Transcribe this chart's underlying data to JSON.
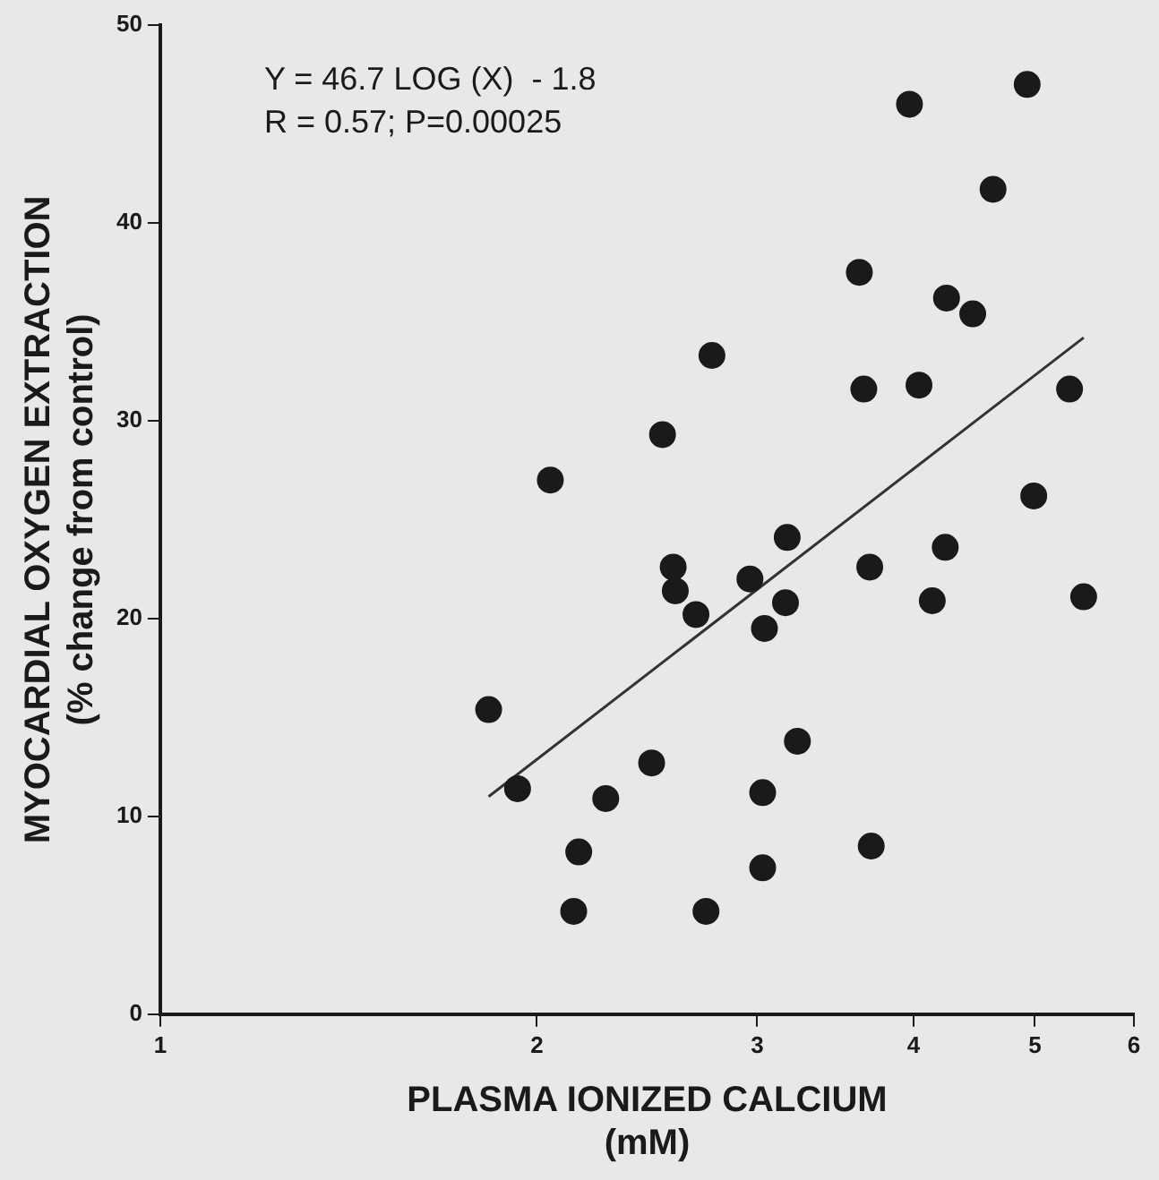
{
  "chart_data": {
    "type": "scatter",
    "xlabel": "PLASMA IONIZED CALCIUM\n(mM)",
    "ylabel": "MYOCARDIAL OXYGEN EXTRACTION\n(% change from control)",
    "log": "x",
    "grid": false,
    "legend": false,
    "marker": "circle",
    "xlim": [
      1,
      6
    ],
    "xticks": [
      1,
      2,
      3,
      4,
      5,
      6
    ],
    "ylim": [
      0,
      50
    ],
    "yticks": [
      0,
      10,
      20,
      30,
      40,
      50
    ],
    "annotations": [
      "Y = 46.7 LOG (X)  - 1.8",
      "R = 0.57; P=0.00025"
    ],
    "series": [
      {
        "color": "#1a1a1a",
        "x": [
          1.83,
          1.93,
          2.05,
          2.16,
          2.14,
          2.27,
          2.47,
          2.52,
          2.57,
          2.58,
          2.68,
          2.73,
          2.76,
          2.96,
          3.03,
          3.03,
          3.04,
          3.16,
          3.17,
          3.23,
          3.62,
          3.65,
          3.69,
          3.7,
          3.97,
          4.04,
          4.14,
          4.24,
          4.25,
          4.46,
          4.63,
          4.93,
          4.99,
          5.33,
          5.47
        ],
        "values": [
          15.4,
          11.4,
          27.0,
          8.2,
          5.2,
          10.9,
          12.7,
          29.3,
          22.6,
          21.4,
          20.2,
          5.2,
          33.3,
          22.0,
          7.4,
          11.2,
          19.5,
          20.8,
          24.1,
          13.8,
          37.5,
          31.6,
          22.6,
          8.5,
          46.0,
          31.8,
          20.9,
          23.6,
          36.2,
          35.4,
          41.7,
          47.0,
          26.2,
          31.6,
          21.1
        ]
      },
      {
        "type": "line",
        "color": "#333333",
        "marker": "none",
        "x": [
          1.83,
          5.47
        ],
        "values": [
          11.0,
          34.2
        ]
      }
    ]
  }
}
